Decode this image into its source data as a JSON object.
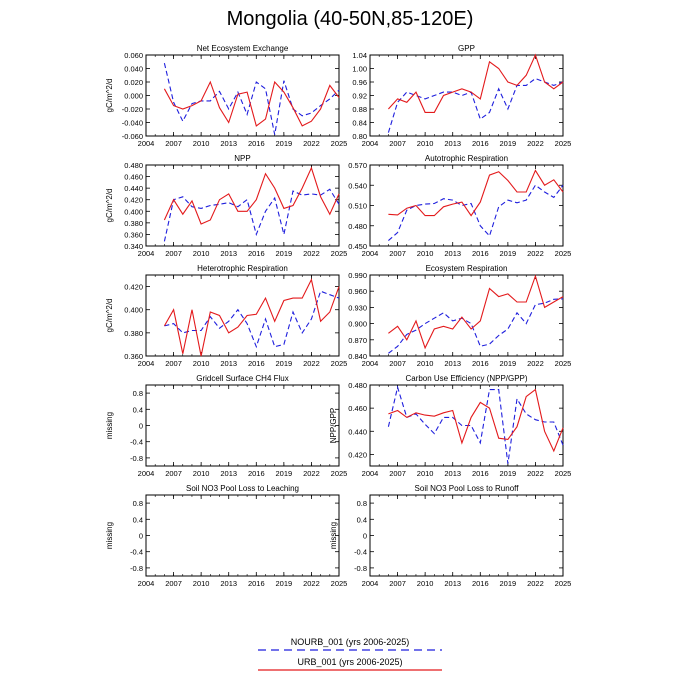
{
  "title": "Mongolia (40-50N,85-120E)",
  "colors": {
    "nourb": "#1f1fdd",
    "urb": "#e31a1c",
    "axis": "#000000"
  },
  "legend": [
    {
      "label": "NOURB_001 (yrs 2006-2025)",
      "color": "#1f1fdd",
      "dash": true
    },
    {
      "label": "URB_001 (yrs 2006-2025)",
      "color": "#e31a1c",
      "dash": false
    }
  ],
  "chart_data": [
    {
      "type": "line",
      "title": "Net Ecosystem Exchange",
      "ylabel": "gC/m^2/d",
      "xlabel": "",
      "xlim": [
        2004,
        2025
      ],
      "ylim": [
        -0.06,
        0.06
      ],
      "xticks": [
        2004,
        2007,
        2010,
        2013,
        2016,
        2019,
        2022,
        2025
      ],
      "yticks": [
        -0.06,
        -0.04,
        -0.02,
        0.0,
        0.02,
        0.04,
        0.06
      ],
      "ytick_labels": [
        "-0.060",
        "-0.040",
        "-0.020",
        "0.000",
        "0.020",
        "0.040",
        "0.060"
      ],
      "x": [
        2006,
        2007,
        2008,
        2009,
        2010,
        2011,
        2012,
        2013,
        2014,
        2015,
        2016,
        2017,
        2018,
        2019,
        2020,
        2021,
        2022,
        2023,
        2024,
        2025
      ],
      "series": [
        {
          "name": "NOURB_001",
          "values": [
            0.048,
            -0.01,
            -0.038,
            -0.012,
            -0.008,
            -0.008,
            0.006,
            -0.02,
            0.005,
            -0.028,
            0.02,
            0.01,
            -0.058,
            0.022,
            -0.02,
            -0.03,
            -0.026,
            -0.015,
            -0.005,
            0.008
          ]
        },
        {
          "name": "URB_001",
          "values": [
            0.01,
            -0.015,
            -0.02,
            -0.015,
            -0.008,
            0.02,
            -0.018,
            -0.04,
            0.002,
            0.005,
            -0.045,
            -0.035,
            0.02,
            0.005,
            -0.018,
            -0.045,
            -0.038,
            -0.02,
            0.015,
            -0.003
          ]
        }
      ]
    },
    {
      "type": "line",
      "title": "GPP",
      "ylabel": "",
      "xlabel": "",
      "xlim": [
        2004,
        2025
      ],
      "ylim": [
        0.8,
        1.04
      ],
      "xticks": [
        2004,
        2007,
        2010,
        2013,
        2016,
        2019,
        2022,
        2025
      ],
      "yticks": [
        0.8,
        0.84,
        0.88,
        0.92,
        0.96,
        1.0,
        1.04
      ],
      "ytick_labels": [
        "0.80",
        "0.84",
        "0.88",
        "0.92",
        "0.96",
        "1.00",
        "1.04"
      ],
      "x": [
        2006,
        2007,
        2008,
        2009,
        2010,
        2011,
        2012,
        2013,
        2014,
        2015,
        2016,
        2017,
        2018,
        2019,
        2020,
        2021,
        2022,
        2023,
        2024,
        2025
      ],
      "series": [
        {
          "name": "NOURB_001",
          "values": [
            0.81,
            0.9,
            0.93,
            0.92,
            0.91,
            0.92,
            0.93,
            0.93,
            0.92,
            0.93,
            0.85,
            0.87,
            0.94,
            0.88,
            0.95,
            0.95,
            0.97,
            0.96,
            0.95,
            0.96
          ]
        },
        {
          "name": "URB_001",
          "values": [
            0.88,
            0.91,
            0.9,
            0.93,
            0.87,
            0.87,
            0.92,
            0.93,
            0.94,
            0.93,
            0.91,
            1.02,
            1.0,
            0.96,
            0.95,
            0.98,
            1.04,
            0.96,
            0.94,
            0.96
          ]
        }
      ]
    },
    {
      "type": "line",
      "title": "NPP",
      "ylabel": "gC/m^2/d",
      "xlabel": "",
      "xlim": [
        2004,
        2025
      ],
      "ylim": [
        0.34,
        0.48
      ],
      "xticks": [
        2004,
        2007,
        2010,
        2013,
        2016,
        2019,
        2022,
        2025
      ],
      "yticks": [
        0.34,
        0.36,
        0.38,
        0.4,
        0.42,
        0.44,
        0.46,
        0.48
      ],
      "ytick_labels": [
        "0.340",
        "0.360",
        "0.380",
        "0.400",
        "0.420",
        "0.440",
        "0.460",
        "0.480"
      ],
      "x": [
        2006,
        2007,
        2008,
        2009,
        2010,
        2011,
        2012,
        2013,
        2014,
        2015,
        2016,
        2017,
        2018,
        2019,
        2020,
        2021,
        2022,
        2023,
        2024,
        2025
      ],
      "series": [
        {
          "name": "NOURB_001",
          "values": [
            0.348,
            0.42,
            0.425,
            0.408,
            0.405,
            0.41,
            0.412,
            0.415,
            0.408,
            0.42,
            0.36,
            0.4,
            0.423,
            0.36,
            0.435,
            0.428,
            0.43,
            0.428,
            0.438,
            0.412
          ]
        },
        {
          "name": "URB_001",
          "values": [
            0.385,
            0.42,
            0.395,
            0.418,
            0.378,
            0.385,
            0.42,
            0.43,
            0.4,
            0.4,
            0.42,
            0.465,
            0.44,
            0.405,
            0.41,
            0.44,
            0.475,
            0.425,
            0.395,
            0.43
          ]
        }
      ]
    },
    {
      "type": "line",
      "title": "Autotrophic Respiration",
      "ylabel": "",
      "xlabel": "",
      "xlim": [
        2004,
        2025
      ],
      "ylim": [
        0.45,
        0.57
      ],
      "xticks": [
        2004,
        2007,
        2010,
        2013,
        2016,
        2019,
        2022,
        2025
      ],
      "yticks": [
        0.45,
        0.48,
        0.51,
        0.54,
        0.57
      ],
      "ytick_labels": [
        "0.450",
        "0.480",
        "0.510",
        "0.540",
        "0.570"
      ],
      "x": [
        2006,
        2007,
        2008,
        2009,
        2010,
        2011,
        2012,
        2013,
        2014,
        2015,
        2016,
        2017,
        2018,
        2019,
        2020,
        2021,
        2022,
        2023,
        2024,
        2025
      ],
      "series": [
        {
          "name": "NOURB_001",
          "values": [
            0.458,
            0.47,
            0.503,
            0.51,
            0.512,
            0.513,
            0.52,
            0.518,
            0.51,
            0.513,
            0.48,
            0.465,
            0.508,
            0.518,
            0.514,
            0.518,
            0.54,
            0.53,
            0.522,
            0.54
          ]
        },
        {
          "name": "URB_001",
          "values": [
            0.497,
            0.496,
            0.506,
            0.51,
            0.495,
            0.495,
            0.508,
            0.512,
            0.515,
            0.495,
            0.515,
            0.555,
            0.56,
            0.547,
            0.53,
            0.53,
            0.562,
            0.54,
            0.548,
            0.53
          ]
        }
      ]
    },
    {
      "type": "line",
      "title": "Heterotrophic Respiration",
      "ylabel": "gC/m^2/d",
      "xlabel": "",
      "xlim": [
        2004,
        2025
      ],
      "ylim": [
        0.36,
        0.43
      ],
      "xticks": [
        2004,
        2007,
        2010,
        2013,
        2016,
        2019,
        2022,
        2025
      ],
      "yticks": [
        0.36,
        0.38,
        0.4,
        0.42
      ],
      "ytick_labels": [
        "0.360",
        "0.380",
        "0.400",
        "0.420"
      ],
      "x": [
        2006,
        2007,
        2008,
        2009,
        2010,
        2011,
        2012,
        2013,
        2014,
        2015,
        2016,
        2017,
        2018,
        2019,
        2020,
        2021,
        2022,
        2023,
        2024,
        2025
      ],
      "series": [
        {
          "name": "NOURB_001",
          "values": [
            0.386,
            0.388,
            0.38,
            0.382,
            0.382,
            0.394,
            0.384,
            0.39,
            0.4,
            0.388,
            0.368,
            0.392,
            0.368,
            0.37,
            0.398,
            0.38,
            0.392,
            0.416,
            0.413,
            0.41
          ]
        },
        {
          "name": "URB_001",
          "values": [
            0.386,
            0.4,
            0.362,
            0.4,
            0.36,
            0.398,
            0.395,
            0.38,
            0.385,
            0.395,
            0.396,
            0.41,
            0.39,
            0.408,
            0.41,
            0.41,
            0.426,
            0.39,
            0.398,
            0.42
          ]
        }
      ]
    },
    {
      "type": "line",
      "title": "Ecosystem Respiration",
      "ylabel": "",
      "xlabel": "",
      "xlim": [
        2004,
        2025
      ],
      "ylim": [
        0.84,
        0.99
      ],
      "xticks": [
        2004,
        2007,
        2010,
        2013,
        2016,
        2019,
        2022,
        2025
      ],
      "yticks": [
        0.84,
        0.87,
        0.9,
        0.93,
        0.96,
        0.99
      ],
      "ytick_labels": [
        "0.840",
        "0.870",
        "0.900",
        "0.930",
        "0.960",
        "0.990"
      ],
      "x": [
        2006,
        2007,
        2008,
        2009,
        2010,
        2011,
        2012,
        2013,
        2014,
        2015,
        2016,
        2017,
        2018,
        2019,
        2020,
        2021,
        2022,
        2023,
        2024,
        2025
      ],
      "series": [
        {
          "name": "NOURB_001",
          "values": [
            0.845,
            0.858,
            0.88,
            0.888,
            0.9,
            0.91,
            0.92,
            0.905,
            0.91,
            0.9,
            0.858,
            0.862,
            0.878,
            0.89,
            0.92,
            0.9,
            0.935,
            0.938,
            0.945,
            0.946
          ]
        },
        {
          "name": "URB_001",
          "values": [
            0.882,
            0.895,
            0.87,
            0.905,
            0.855,
            0.89,
            0.895,
            0.89,
            0.912,
            0.89,
            0.905,
            0.965,
            0.95,
            0.955,
            0.94,
            0.94,
            0.988,
            0.93,
            0.94,
            0.95
          ]
        }
      ]
    },
    {
      "type": "line",
      "title": "Gridcell Surface CH4 Flux",
      "ylabel": "missing",
      "xlabel": "",
      "xlim": [
        2004,
        2025
      ],
      "ylim": [
        -1,
        1
      ],
      "xticks": [
        2004,
        2007,
        2010,
        2013,
        2016,
        2019,
        2022,
        2025
      ],
      "yticks": [
        -0.8,
        -0.4,
        0.0,
        0.4,
        0.8
      ],
      "ytick_labels": [
        "-0.8",
        "-0.4",
        "0",
        "0.4",
        "0.8"
      ],
      "x": [],
      "series": []
    },
    {
      "type": "line",
      "title": "Carbon Use Efficiency (NPP/GPP)",
      "ylabel": "NPP/GPP",
      "xlabel": "",
      "xlim": [
        2004,
        2025
      ],
      "ylim": [
        0.41,
        0.48
      ],
      "xticks": [
        2004,
        2007,
        2010,
        2013,
        2016,
        2019,
        2022,
        2025
      ],
      "yticks": [
        0.42,
        0.44,
        0.46,
        0.48
      ],
      "ytick_labels": [
        "0.420",
        "0.440",
        "0.460",
        "0.480"
      ],
      "x": [
        2006,
        2007,
        2008,
        2009,
        2010,
        2011,
        2012,
        2013,
        2014,
        2015,
        2016,
        2017,
        2018,
        2019,
        2020,
        2021,
        2022,
        2023,
        2024,
        2025
      ],
      "series": [
        {
          "name": "NOURB_001",
          "values": [
            0.444,
            0.478,
            0.452,
            0.455,
            0.446,
            0.438,
            0.452,
            0.452,
            0.445,
            0.445,
            0.43,
            0.476,
            0.476,
            0.412,
            0.468,
            0.455,
            0.45,
            0.448,
            0.448,
            0.428
          ]
        },
        {
          "name": "URB_001",
          "values": [
            0.455,
            0.458,
            0.452,
            0.456,
            0.454,
            0.453,
            0.456,
            0.458,
            0.43,
            0.452,
            0.465,
            0.46,
            0.434,
            0.433,
            0.444,
            0.47,
            0.476,
            0.44,
            0.423,
            0.443
          ]
        }
      ]
    },
    {
      "type": "line",
      "title": "Soil NO3 Pool Loss to Leaching",
      "ylabel": "missing",
      "xlabel": "",
      "xlim": [
        2004,
        2025
      ],
      "ylim": [
        -1,
        1
      ],
      "xticks": [
        2004,
        2007,
        2010,
        2013,
        2016,
        2019,
        2022,
        2025
      ],
      "yticks": [
        -0.8,
        -0.4,
        0.0,
        0.4,
        0.8
      ],
      "ytick_labels": [
        "-0.8",
        "-0.4",
        "0",
        "0.4",
        "0.8"
      ],
      "x": [],
      "series": []
    },
    {
      "type": "line",
      "title": "Soil NO3 Pool Loss to Runoff",
      "ylabel": "missing",
      "xlabel": "",
      "xlim": [
        2004,
        2025
      ],
      "ylim": [
        -1,
        1
      ],
      "xticks": [
        2004,
        2007,
        2010,
        2013,
        2016,
        2019,
        2022,
        2025
      ],
      "yticks": [
        -0.8,
        -0.4,
        0.0,
        0.4,
        0.8
      ],
      "ytick_labels": [
        "-0.8",
        "-0.4",
        "0",
        "0.4",
        "0.8"
      ],
      "x": [],
      "series": []
    }
  ]
}
